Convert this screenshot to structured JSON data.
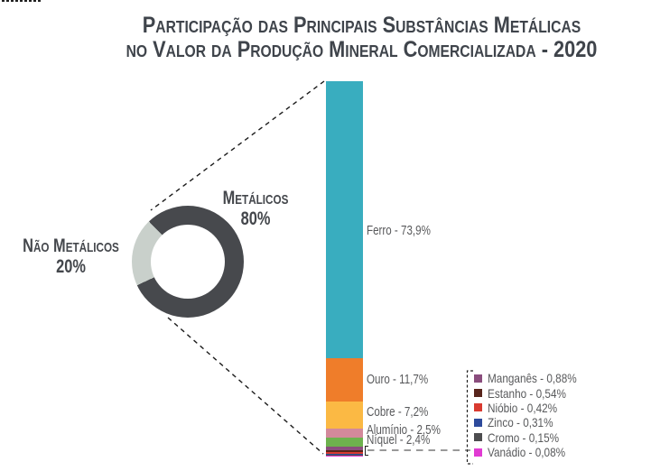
{
  "corner_fragment": "clipped text fragment at top-left edge",
  "title": {
    "line1": "Participação das Principais Substâncias Metálicas",
    "line2": "no Valor da Produção Mineral Comercializada - 2020"
  },
  "chart_data": [
    {
      "type": "pie",
      "donut": true,
      "slices": [
        {
          "label": "Metálicos",
          "value": 80,
          "pct_label": "80%",
          "color": "#47494d"
        },
        {
          "label": "Não Metálicos",
          "value": 20,
          "pct_label": "20%",
          "color": "#c9d0cb"
        }
      ],
      "legend_position": "beside",
      "notes": "Metálicos slice exploded into stacked bar"
    },
    {
      "type": "bar",
      "stacked": true,
      "categories": [
        "Ferro",
        "Ouro",
        "Cobre",
        "Alumínio",
        "Níquel",
        "Manganês",
        "Estanho",
        "Nióbio",
        "Zinco",
        "Cromo",
        "Vanádio"
      ],
      "values": [
        73.9,
        11.7,
        7.2,
        2.5,
        2.4,
        0.88,
        0.54,
        0.42,
        0.31,
        0.15,
        0.08
      ],
      "labels": [
        "Ferro - 73,9%",
        "Ouro - 11,7%",
        "Cobre - 7,2%",
        "Alumínio - 2,5%",
        "Níquel - 2,4%",
        "Manganês - 0,88%",
        "Estanho - 0,54%",
        "Nióbio - 0,42%",
        "Zinco - 0,31%",
        "Cromo - 0,15%",
        "Vanádio - 0,08%"
      ],
      "colors": [
        "#39adbf",
        "#ef7d2a",
        "#fbb944",
        "#d3899b",
        "#6eb14e",
        "#8a4d7d",
        "#58251c",
        "#d93a30",
        "#2d4a9c",
        "#4d4d4f",
        "#e13bd3"
      ],
      "ylim": [
        0,
        100
      ],
      "legend": "smallest six categories listed in dashed box"
    }
  ]
}
